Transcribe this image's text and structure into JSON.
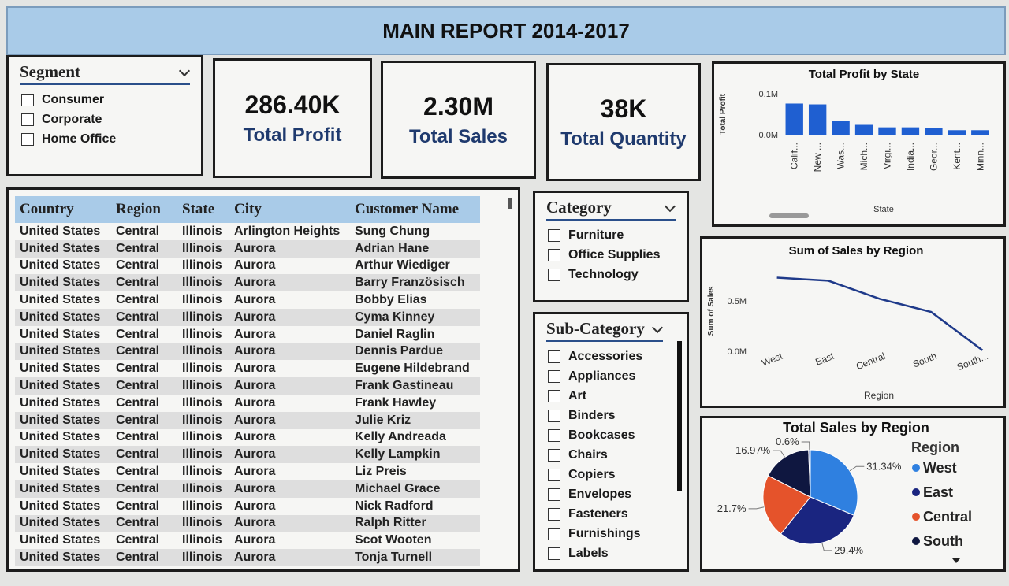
{
  "header": {
    "title": "MAIN REPORT 2014-2017"
  },
  "segment": {
    "title": "Segment",
    "options": [
      "Consumer",
      "Corporate",
      "Home Office"
    ]
  },
  "kpis": [
    {
      "value": "286.40K",
      "label": "Total Profit"
    },
    {
      "value": "2.30M",
      "label": "Total Sales"
    },
    {
      "value": "38K",
      "label": "Total Quantity"
    }
  ],
  "table": {
    "columns": [
      "Country",
      "Region",
      "State",
      "City",
      "Customer Name"
    ],
    "rows": [
      [
        "United States",
        "Central",
        "Illinois",
        "Arlington Heights",
        "Sung Chung"
      ],
      [
        "United States",
        "Central",
        "Illinois",
        "Aurora",
        "Adrian Hane"
      ],
      [
        "United States",
        "Central",
        "Illinois",
        "Aurora",
        "Arthur Wiediger"
      ],
      [
        "United States",
        "Central",
        "Illinois",
        "Aurora",
        "Barry Französisch"
      ],
      [
        "United States",
        "Central",
        "Illinois",
        "Aurora",
        "Bobby Elias"
      ],
      [
        "United States",
        "Central",
        "Illinois",
        "Aurora",
        "Cyma Kinney"
      ],
      [
        "United States",
        "Central",
        "Illinois",
        "Aurora",
        "Daniel Raglin"
      ],
      [
        "United States",
        "Central",
        "Illinois",
        "Aurora",
        "Dennis Pardue"
      ],
      [
        "United States",
        "Central",
        "Illinois",
        "Aurora",
        "Eugene Hildebrand"
      ],
      [
        "United States",
        "Central",
        "Illinois",
        "Aurora",
        "Frank Gastineau"
      ],
      [
        "United States",
        "Central",
        "Illinois",
        "Aurora",
        "Frank Hawley"
      ],
      [
        "United States",
        "Central",
        "Illinois",
        "Aurora",
        "Julie Kriz"
      ],
      [
        "United States",
        "Central",
        "Illinois",
        "Aurora",
        "Kelly Andreada"
      ],
      [
        "United States",
        "Central",
        "Illinois",
        "Aurora",
        "Kelly Lampkin"
      ],
      [
        "United States",
        "Central",
        "Illinois",
        "Aurora",
        "Liz Preis"
      ],
      [
        "United States",
        "Central",
        "Illinois",
        "Aurora",
        "Michael Grace"
      ],
      [
        "United States",
        "Central",
        "Illinois",
        "Aurora",
        "Nick Radford"
      ],
      [
        "United States",
        "Central",
        "Illinois",
        "Aurora",
        "Ralph Ritter"
      ],
      [
        "United States",
        "Central",
        "Illinois",
        "Aurora",
        "Scot Wooten"
      ],
      [
        "United States",
        "Central",
        "Illinois",
        "Aurora",
        "Tonja Turnell"
      ]
    ]
  },
  "category": {
    "title": "Category",
    "options": [
      "Furniture",
      "Office Supplies",
      "Technology"
    ]
  },
  "sub_category": {
    "title": "Sub-Category",
    "options": [
      "Accessories",
      "Appliances",
      "Art",
      "Binders",
      "Bookcases",
      "Chairs",
      "Copiers",
      "Envelopes",
      "Fasteners",
      "Furnishings",
      "Labels"
    ]
  },
  "chart_data": [
    {
      "type": "bar",
      "title": "Total Profit by State",
      "x_label": "State",
      "y_label": "Total Profit",
      "categories": [
        "Calif...",
        "New ...",
        "Was...",
        "Mich...",
        "Virgi...",
        "India...",
        "Geor...",
        "Kent...",
        "Minn..."
      ],
      "values": [
        0.076,
        0.074,
        0.033,
        0.024,
        0.018,
        0.018,
        0.016,
        0.011,
        0.011
      ],
      "color": "#1f5fd1",
      "ylim": [
        0,
        0.1
      ],
      "yticks": [
        {
          "value": 0,
          "label": "0.0M"
        },
        {
          "value": 0.1,
          "label": "0.1M"
        }
      ]
    },
    {
      "type": "line",
      "title": "Sum of Sales by Region",
      "x_label": "Region",
      "y_label": "Sum of Sales",
      "categories": [
        "West",
        "East",
        "Central",
        "South",
        "South..."
      ],
      "values": [
        0.73,
        0.7,
        0.52,
        0.39,
        0.01
      ],
      "color": "#1f3a8a",
      "ylim": [
        0,
        0.8
      ],
      "yticks": [
        {
          "value": 0,
          "label": "0.0M"
        },
        {
          "value": 0.5,
          "label": "0.5M"
        }
      ]
    },
    {
      "type": "pie",
      "title": "Total Sales by Region",
      "legend_title": "Region",
      "categories": [
        "West",
        "East",
        "Central",
        "South",
        null
      ],
      "values": [
        31.34,
        29.4,
        21.7,
        16.97,
        0.6
      ],
      "value_labels": [
        "31.34%",
        "29.4%",
        "21.7%",
        "16.97%",
        "0.6%"
      ],
      "colors": [
        "#2f80e0",
        "#1a2580",
        "#e5532b",
        "#0f1740",
        "#7a8fc7"
      ],
      "legend": "right"
    }
  ]
}
